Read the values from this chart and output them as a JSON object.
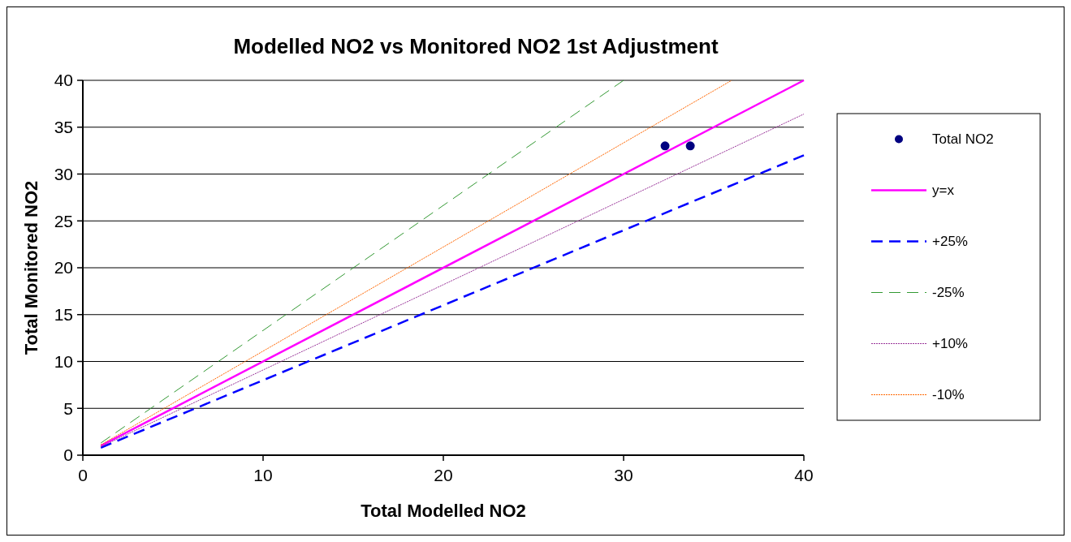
{
  "chart_data": {
    "type": "scatter",
    "title": "Modelled NO2 vs Monitored NO2 1st Adjustment",
    "xlabel": "Total Modelled NO2",
    "ylabel": "Total Monitored NO2",
    "xlim": [
      0,
      40
    ],
    "xticks": [
      0,
      10,
      20,
      30,
      40
    ],
    "ylim": [
      0,
      40
    ],
    "yticks": [
      0,
      5,
      10,
      15,
      20,
      25,
      30,
      35,
      40
    ],
    "grid": "y",
    "legend": "right",
    "series": [
      {
        "name": "Total NO2",
        "type": "scatter",
        "marker": "circle",
        "color": "#000080",
        "x": [
          32.3,
          33.7
        ],
        "values": [
          33,
          33
        ]
      },
      {
        "name": "y=x",
        "type": "line",
        "line_style": "solid",
        "color": "#ff00ff",
        "x": [
          1,
          40
        ],
        "values": [
          1,
          40
        ]
      },
      {
        "name": "+25%",
        "type": "line",
        "line_style": "dashed",
        "color": "#0000ff",
        "x": [
          1,
          40
        ],
        "values": [
          0.8,
          32
        ]
      },
      {
        "name": "-25%",
        "type": "line",
        "line_style": "dashed",
        "color": "#339933",
        "x": [
          1,
          30
        ],
        "values": [
          1.3,
          40
        ]
      },
      {
        "name": "+10%",
        "type": "line",
        "line_style": "dotted",
        "color": "#993399",
        "x": [
          1,
          40
        ],
        "values": [
          0.9,
          36.4
        ]
      },
      {
        "name": "-10%",
        "type": "line",
        "line_style": "dotted",
        "color": "#ff6600",
        "x": [
          1,
          36
        ],
        "values": [
          1.1,
          40
        ]
      }
    ]
  }
}
